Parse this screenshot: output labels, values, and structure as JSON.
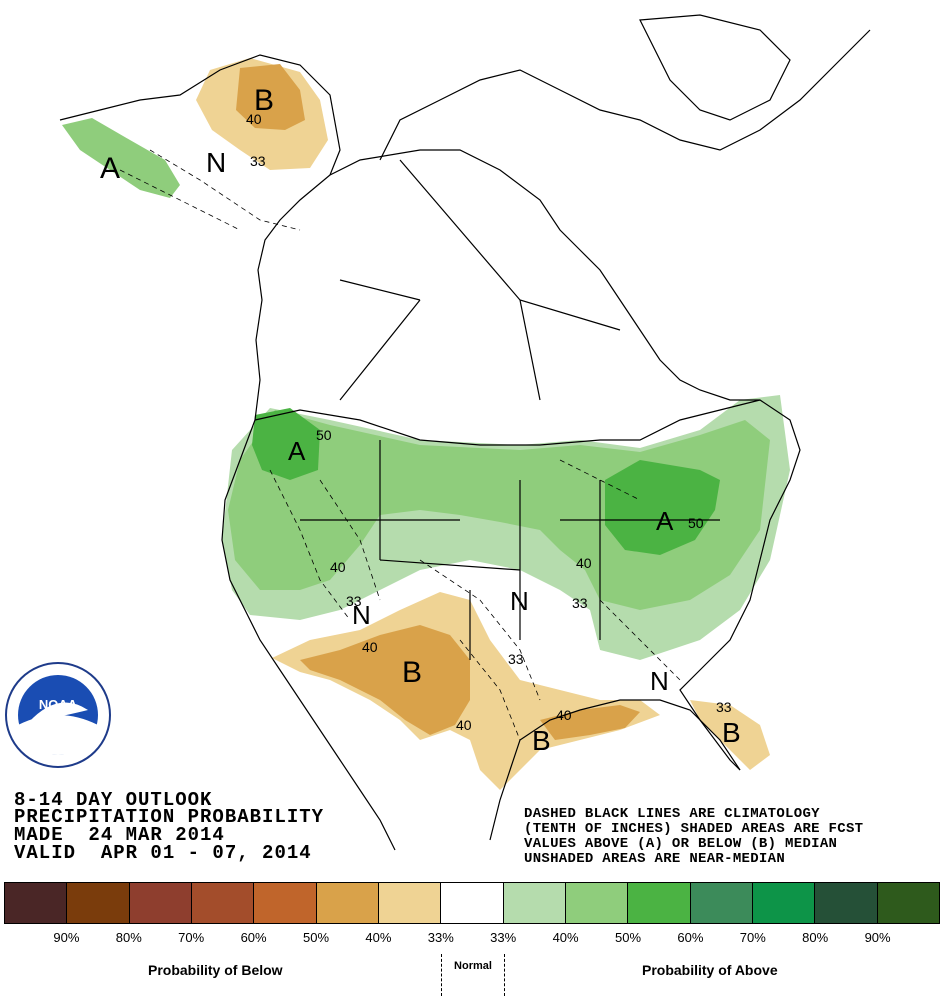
{
  "header": {
    "line1": "8-14 DAY OUTLOOK",
    "line2": "PRECIPITATION PROBABILITY",
    "line3": "MADE  24 MAR 2014",
    "line4": "VALID  APR 01 - 07, 2014"
  },
  "note": {
    "line1": "DASHED BLACK LINES ARE CLIMATOLOGY",
    "line2": "(TENTH OF INCHES) SHADED AREAS ARE FCST",
    "line3": "VALUES ABOVE (A) OR BELOW (B) MEDIAN",
    "line4": "UNSHADED AREAS ARE NEAR-MEDIAN"
  },
  "logo": {
    "text": "NOAA"
  },
  "map_labels": {
    "b_alaska": "B",
    "a_alaska": "A",
    "n_alaska": "N",
    "ak_40": "40",
    "ak_33": "33",
    "a_northwest": "A",
    "nw_50": "50",
    "nw_40": "40",
    "nw_33": "33",
    "a_greatlakes": "A",
    "gl_50": "50",
    "mid_40": "40",
    "mid_33": "33",
    "n_plains": "N",
    "b_southwest": "B",
    "sw_40": "40",
    "sw_40b": "40",
    "sw_33": "33",
    "n_southwest": "N",
    "b_gulf": "B",
    "gulf_40": "40",
    "b_florida": "B",
    "fl_33": "33",
    "n_southeast": "N"
  },
  "legend": {
    "colors": [
      "#4a2626",
      "#7a3c0c",
      "#8e3e2e",
      "#a34d2b",
      "#c0652b",
      "#d9a24a",
      "#efd394",
      "#ffffff",
      "#b5dcad",
      "#8fcd7c",
      "#4bb343",
      "#3c8b5a",
      "#0d9448",
      "#255037",
      "#2e5a1c"
    ],
    "ticks": [
      "90%",
      "80%",
      "70%",
      "60%",
      "50%",
      "40%",
      "33%",
      "33%",
      "40%",
      "50%",
      "60%",
      "70%",
      "80%",
      "90%"
    ],
    "below_label": "Probability of Below",
    "normal_label": "Normal",
    "above_label": "Probability of Above"
  }
}
